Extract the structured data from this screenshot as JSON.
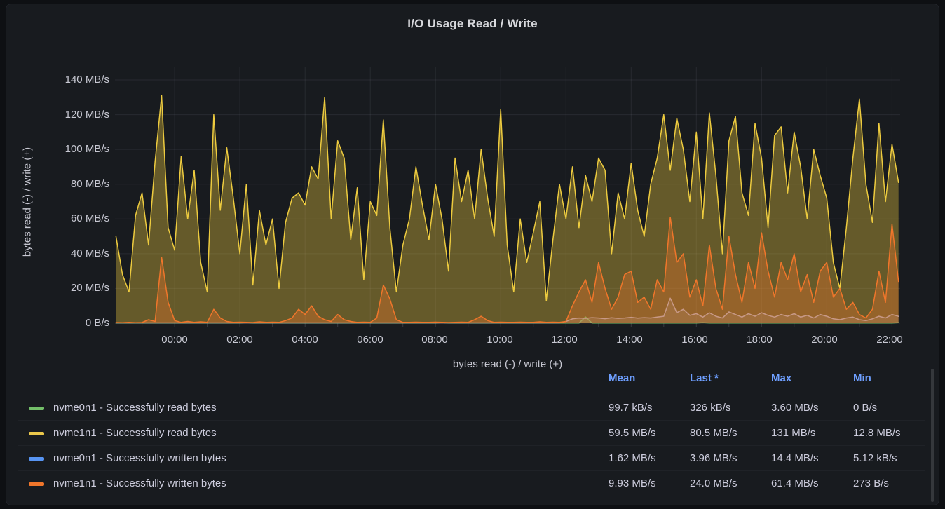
{
  "panel": {
    "title": "I/O Usage Read / Write"
  },
  "chart_data": {
    "type": "area",
    "title": "I/O Usage Read / Write",
    "xlabel": "bytes read (-) / write (+)",
    "ylabel": "bytes read (-) / write (+)",
    "x_unit": "time of day (hours)",
    "y_unit": "MB/s",
    "ylim": [
      0,
      140
    ],
    "grid": true,
    "legend_position": "bottom-table",
    "x_domain": [
      -1.83,
      22.25
    ],
    "y_ticks": [
      0,
      20,
      40,
      60,
      80,
      100,
      120,
      140
    ],
    "y_tick_labels": [
      "140 MB/s",
      "120 MB/s",
      "100 MB/s",
      "80 MB/s",
      "60 MB/s",
      "40 MB/s",
      "20 MB/s",
      "0 B/s"
    ],
    "x_ticks_hours": [
      0,
      2,
      4,
      6,
      8,
      10,
      12,
      14,
      16,
      18,
      20,
      22
    ],
    "x_tick_labels": [
      "00:00",
      "02:00",
      "04:00",
      "06:00",
      "08:00",
      "10:00",
      "12:00",
      "14:00",
      "16:00",
      "18:00",
      "20:00",
      "22:00"
    ],
    "x_start": -1.8,
    "x_step": 0.2,
    "z_order": [
      1,
      0,
      2,
      3
    ],
    "series": [
      {
        "name": "nvme0n1 - Successfully read bytes",
        "legend_color": "#73BF69",
        "line_color": "#73BF69",
        "fill_opacity": 0.25,
        "values": [
          0.1,
          0.1,
          0.1,
          0.1,
          0.1,
          0.1,
          0.1,
          0.1,
          0.1,
          0.1,
          0.1,
          0.1,
          0.1,
          0.1,
          0.1,
          0.1,
          0.1,
          0.1,
          0.1,
          0.1,
          0.3,
          0.1,
          0.1,
          0.1,
          0.1,
          0.1,
          0.1,
          0.1,
          0.1,
          0.1,
          0.1,
          0.1,
          0.1,
          0.1,
          0.1,
          0.1,
          0.1,
          0.1,
          0.1,
          0.1,
          0.1,
          0.1,
          0.1,
          0.1,
          0.1,
          0.1,
          0.1,
          0.1,
          0.1,
          0.1,
          0.3,
          0.1,
          0.1,
          0.1,
          0.1,
          0.1,
          0.1,
          0.1,
          0.1,
          0.1,
          0.1,
          0.1,
          0.1,
          0.1,
          0.1,
          0.1,
          0.1,
          0.1,
          0.1,
          0.1,
          0.1,
          0.1,
          3.6,
          0.1,
          0.1,
          0.1,
          0.1,
          0.1,
          0.1,
          0.1,
          0.1,
          0.1,
          0.1,
          0.1,
          0.1,
          0.1,
          0.1,
          0.1,
          0.1,
          0.1,
          0.3,
          0.1,
          0.1,
          0.1,
          0.1,
          0.1,
          0.1,
          0.1,
          0.1,
          0.1,
          0.1,
          0.1,
          0.1,
          0.1,
          0.1,
          0.1,
          0.1,
          0.1,
          0.1,
          0.1,
          0.1,
          0.1,
          0.1,
          0.1,
          0.1,
          0.1,
          0.1,
          0.1,
          0.1,
          0.1,
          0.3
        ]
      },
      {
        "name": "nvme1n1 - Successfully read bytes",
        "legend_color": "#EAC74B",
        "line_color": "#EDCB3F",
        "fill_opacity": 0.36,
        "values": [
          50,
          28,
          18,
          62,
          75,
          45,
          93,
          131,
          55,
          42,
          96,
          60,
          88,
          35,
          18,
          120,
          65,
          101,
          72,
          40,
          80,
          22,
          65,
          45,
          60,
          20,
          58,
          72,
          75,
          68,
          90,
          83,
          130,
          60,
          105,
          95,
          48,
          78,
          25,
          70,
          62,
          117,
          55,
          18,
          45,
          60,
          90,
          68,
          48,
          80,
          60,
          30,
          95,
          70,
          88,
          60,
          100,
          72,
          50,
          123,
          45,
          18,
          60,
          35,
          52,
          70,
          13,
          48,
          80,
          60,
          90,
          55,
          85,
          70,
          95,
          88,
          40,
          75,
          60,
          92,
          65,
          50,
          80,
          95,
          120,
          88,
          118,
          100,
          70,
          110,
          60,
          121,
          85,
          40,
          105,
          119,
          75,
          62,
          115,
          95,
          55,
          108,
          113,
          75,
          110,
          90,
          60,
          100,
          85,
          72,
          35,
          20,
          55,
          95,
          129,
          80,
          58,
          115,
          70,
          103,
          81
        ]
      },
      {
        "name": "nvme0n1 - Successfully written bytes",
        "legend_color": "#5794F2",
        "line_color": "#B2ACB8",
        "fill_opacity": 0.2,
        "values": [
          0.2,
          0.2,
          0.2,
          0.2,
          0.2,
          0.2,
          0.2,
          0.2,
          0.2,
          0.2,
          0.2,
          0.2,
          0.2,
          0.2,
          0.2,
          0.2,
          0.2,
          0.2,
          0.2,
          0.2,
          0.2,
          0.2,
          0.2,
          0.2,
          0.2,
          0.2,
          0.2,
          0.2,
          0.2,
          0.2,
          0.2,
          0.2,
          0.2,
          0.2,
          0.2,
          0.2,
          0.2,
          0.2,
          0.2,
          0.2,
          0.2,
          0.2,
          0.2,
          0.2,
          0.2,
          0.2,
          0.2,
          0.2,
          0.2,
          0.2,
          0.2,
          0.2,
          0.2,
          0.2,
          0.2,
          0.2,
          0.2,
          0.2,
          0.2,
          0.2,
          0.2,
          0.2,
          0.2,
          0.2,
          0.2,
          0.2,
          0.2,
          0.2,
          0.2,
          1,
          2.5,
          3,
          2.8,
          3.2,
          3,
          2.6,
          3.1,
          2.8,
          3,
          3.4,
          2.9,
          3.2,
          3,
          3.5,
          4,
          14.4,
          6,
          8,
          4.5,
          5.5,
          3.5,
          6,
          4,
          3,
          6.5,
          5,
          3.5,
          5.5,
          4,
          6,
          4.5,
          3.5,
          5,
          4,
          5.5,
          3.5,
          4.5,
          3,
          5,
          4,
          2.5,
          2,
          3,
          3.5,
          2,
          1.5,
          2.5,
          4,
          3,
          5,
          3.96
        ]
      },
      {
        "name": "nvme1n1 - Successfully written bytes",
        "legend_color": "#F0762B",
        "line_color": "#F0762B",
        "fill_opacity": 0.35,
        "values": [
          0.4,
          0.3,
          0.5,
          0.3,
          0.4,
          2,
          1,
          38,
          12,
          1.5,
          0.5,
          1,
          0.5,
          0.8,
          0.5,
          8,
          3,
          1,
          0.5,
          0.6,
          0.5,
          0.4,
          0.8,
          0.5,
          0.6,
          0.5,
          1.5,
          3,
          8,
          5,
          10,
          4,
          2,
          1,
          5,
          2,
          1,
          0.5,
          0.6,
          0.5,
          3,
          22,
          14,
          2,
          0.5,
          0.5,
          0.6,
          0.5,
          0.5,
          0.6,
          0.5,
          0.4,
          0.5,
          0.6,
          0.5,
          2,
          4,
          1.5,
          0.5,
          0.6,
          0.5,
          0.5,
          0.6,
          0.5,
          0.5,
          0.8,
          0.5,
          0.6,
          0.5,
          1,
          10,
          18,
          25,
          12,
          35,
          20,
          8,
          15,
          28,
          30,
          12,
          15,
          8,
          25,
          18,
          61,
          35,
          40,
          15,
          25,
          10,
          45,
          20,
          8,
          50,
          28,
          12,
          35,
          20,
          52,
          30,
          15,
          35,
          25,
          40,
          18,
          28,
          12,
          30,
          35,
          15,
          20,
          8,
          12,
          5,
          3,
          8,
          30,
          12,
          57,
          24
        ]
      }
    ]
  },
  "legend": {
    "headers": {
      "mean": "Mean",
      "last": "Last *",
      "max": "Max",
      "min": "Min"
    },
    "rows": [
      {
        "label": "nvme0n1 - Successfully read bytes",
        "color": "#73BF69",
        "mean": "99.7 kB/s",
        "last": "326 kB/s",
        "max": "3.60 MB/s",
        "min": "0 B/s"
      },
      {
        "label": "nvme1n1 - Successfully read bytes",
        "color": "#EAC74B",
        "mean": "59.5 MB/s",
        "last": "80.5 MB/s",
        "max": "131 MB/s",
        "min": "12.8 MB/s"
      },
      {
        "label": "nvme0n1 - Successfully written bytes",
        "color": "#5794F2",
        "mean": "1.62 MB/s",
        "last": "3.96 MB/s",
        "max": "14.4 MB/s",
        "min": "5.12 kB/s"
      },
      {
        "label": "nvme1n1 - Successfully written bytes",
        "color": "#F0762B",
        "mean": "9.93 MB/s",
        "last": "24.0 MB/s",
        "max": "61.4 MB/s",
        "min": "273 B/s"
      }
    ]
  },
  "colors": {
    "page_bg": "#0E1013",
    "panel_bg": "#181B1F",
    "panel_border": "#22252B",
    "text": "#C8C9D3",
    "header_link": "#6E9FFF",
    "grid": "rgba(204,204,220,0.09)"
  }
}
